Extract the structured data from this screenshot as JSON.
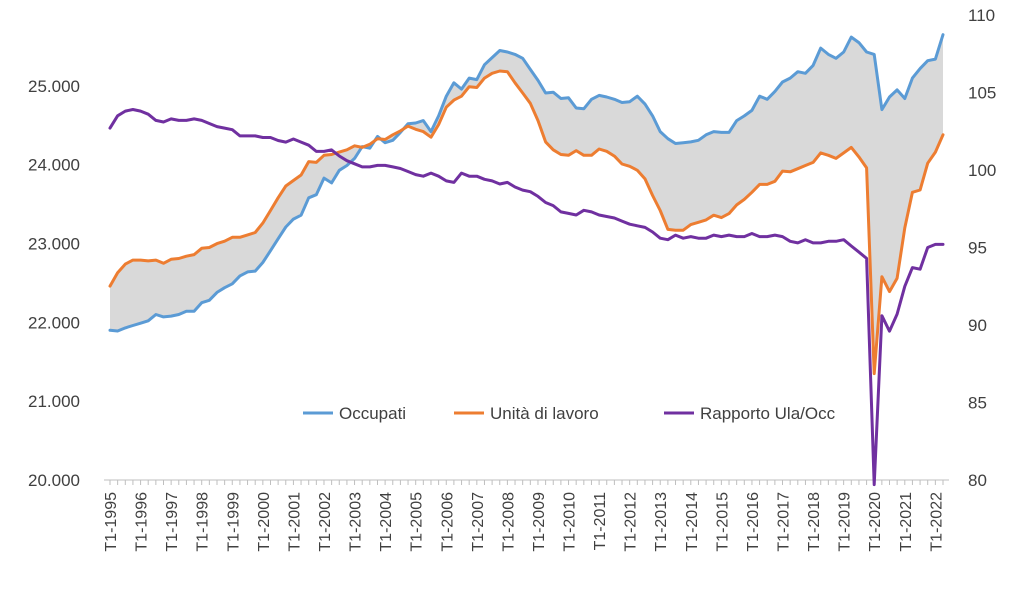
{
  "chart_data": {
    "type": "line",
    "title": "",
    "xlabel": "",
    "ylabel": "",
    "y_left_ticks": [
      "20.000",
      "21.000",
      "22.000",
      "23.000",
      "24.000",
      "25.000"
    ],
    "y_left_range": [
      20000,
      25900
    ],
    "y_right_ticks": [
      "80",
      "85",
      "90",
      "95",
      "100",
      "105",
      "110"
    ],
    "y_right_range": [
      80,
      110
    ],
    "x_tick_labels": [
      "T1-1995",
      "T1-1996",
      "T1-1997",
      "T1-1998",
      "T1-1999",
      "T1-2000",
      "T1-2001",
      "T1-2002",
      "T1-2003",
      "T1-2004",
      "T1-2005",
      "T1-2006",
      "T1-2007",
      "T1-2008",
      "T1-2009",
      "T1-2010",
      "T1-2011",
      "T1-2012",
      "T1-2013",
      "T1-2014",
      "T1-2015",
      "T1-2016",
      "T1-2017",
      "T1-2018",
      "T1-2019",
      "T1-2020",
      "T1-2021",
      "T1-2022"
    ],
    "x_start_year": 1995,
    "shaded_area_between": [
      "Occupati",
      "Unità di lavoro"
    ],
    "shade_color": "#d9d9d9",
    "grid": false,
    "legend_position": "bottom-right",
    "series": [
      {
        "name": "Occupati",
        "axis": "left",
        "color": "#5b9bd5",
        "quarterly_values": [
          21900,
          21890,
          21930,
          21960,
          21990,
          22020,
          22100,
          22070,
          22080,
          22100,
          22140,
          22140,
          22250,
          22280,
          22380,
          22440,
          22490,
          22590,
          22640,
          22650,
          22760,
          22910,
          23060,
          23210,
          23310,
          23360,
          23580,
          23620,
          23830,
          23770,
          23930,
          23990,
          24080,
          24230,
          24210,
          24360,
          24280,
          24310,
          24410,
          24520,
          24530,
          24560,
          24420,
          24620,
          24870,
          25040,
          24960,
          25100,
          25080,
          25270,
          25360,
          25450,
          25430,
          25400,
          25350,
          25210,
          25070,
          24910,
          24920,
          24840,
          24850,
          24720,
          24710,
          24830,
          24880,
          24860,
          24830,
          24790,
          24800,
          24870,
          24770,
          24620,
          24420,
          24330,
          24270,
          24280,
          24290,
          24310,
          24380,
          24420,
          24410,
          24410,
          24560,
          24620,
          24690,
          24870,
          24830,
          24930,
          25050,
          25100,
          25180,
          25160,
          25260,
          25480,
          25400,
          25350,
          25430,
          25620,
          25550,
          25430,
          25400,
          24700,
          24860,
          24950,
          24840,
          25100,
          25220,
          25320,
          25340,
          25650
        ]
      },
      {
        "name": "Unità di lavoro",
        "axis": "left",
        "color": "#ed7d31",
        "quarterly_values": [
          22460,
          22630,
          22740,
          22790,
          22790,
          22780,
          22790,
          22750,
          22800,
          22810,
          22840,
          22860,
          22940,
          22950,
          23000,
          23030,
          23080,
          23080,
          23110,
          23140,
          23260,
          23420,
          23580,
          23730,
          23800,
          23870,
          24040,
          24030,
          24120,
          24130,
          24160,
          24190,
          24240,
          24220,
          24260,
          24330,
          24320,
          24380,
          24430,
          24490,
          24450,
          24420,
          24350,
          24510,
          24730,
          24820,
          24870,
          24990,
          24980,
          25100,
          25160,
          25190,
          25180,
          25040,
          24910,
          24780,
          24560,
          24290,
          24190,
          24130,
          24120,
          24180,
          24120,
          24120,
          24200,
          24170,
          24110,
          24010,
          23980,
          23930,
          23820,
          23610,
          23420,
          23180,
          23170,
          23170,
          23240,
          23270,
          23300,
          23360,
          23330,
          23380,
          23490,
          23560,
          23650,
          23750,
          23750,
          23790,
          23920,
          23910,
          23950,
          23990,
          24030,
          24150,
          24120,
          24080,
          24150,
          24220,
          24100,
          23960,
          21350,
          22580,
          22390,
          22560,
          23200,
          23650,
          23680,
          24020,
          24160,
          24380
        ]
      },
      {
        "name": "Rapporto Ula/Occ",
        "axis": "right",
        "color": "#7030a0",
        "quarterly_values": [
          102.7,
          103.5,
          103.8,
          103.9,
          103.8,
          103.6,
          103.2,
          103.1,
          103.3,
          103.2,
          103.2,
          103.3,
          103.2,
          103.0,
          102.8,
          102.7,
          102.6,
          102.2,
          102.2,
          102.2,
          102.1,
          102.1,
          101.9,
          101.8,
          102.0,
          101.8,
          101.6,
          101.2,
          101.2,
          101.3,
          100.9,
          100.6,
          100.4,
          100.2,
          100.2,
          100.3,
          100.3,
          100.2,
          100.1,
          99.9,
          99.7,
          99.6,
          99.8,
          99.6,
          99.3,
          99.2,
          99.8,
          99.6,
          99.6,
          99.4,
          99.3,
          99.1,
          99.2,
          98.9,
          98.7,
          98.6,
          98.3,
          97.9,
          97.7,
          97.3,
          97.2,
          97.1,
          97.4,
          97.3,
          97.1,
          97.0,
          96.9,
          96.7,
          96.5,
          96.4,
          96.3,
          96.0,
          95.6,
          95.5,
          95.8,
          95.6,
          95.7,
          95.6,
          95.6,
          95.8,
          95.7,
          95.8,
          95.7,
          95.7,
          95.9,
          95.7,
          95.7,
          95.8,
          95.7,
          95.4,
          95.3,
          95.5,
          95.3,
          95.3,
          95.4,
          95.4,
          95.5,
          95.1,
          94.7,
          94.3,
          79.7,
          90.6,
          89.6,
          90.7,
          92.5,
          93.7,
          93.6,
          95.0,
          95.2,
          95.2
        ]
      }
    ]
  }
}
